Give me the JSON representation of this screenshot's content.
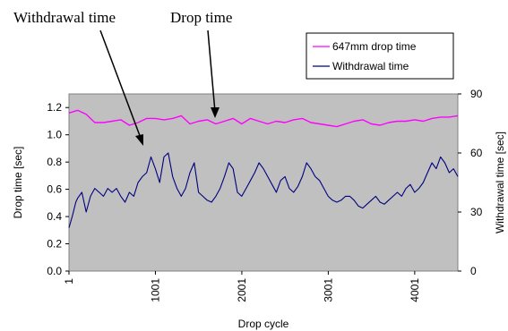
{
  "chart_data": {
    "type": "line",
    "x_label": "Drop cycle",
    "y_label_left": "Drop time [sec]",
    "y_label_right": "Withdrawal time [sec]",
    "x_range": [
      1,
      4500
    ],
    "x_ticks": [
      "1",
      "1001",
      "2001",
      "3001",
      "4001"
    ],
    "y_left_range": [
      0.0,
      1.3
    ],
    "y_left_ticks": [
      "0.0",
      "0.2",
      "0.4",
      "0.6",
      "0.8",
      "1.0",
      "1.2"
    ],
    "y_right_range": [
      0,
      90
    ],
    "y_right_ticks": [
      "0",
      "30",
      "60",
      "90"
    ],
    "plot_background": "#c0c0c0",
    "grid": false,
    "legend_position": "top-right",
    "annotations": [
      {
        "text": "Withdrawal time",
        "series": "Withdrawal time"
      },
      {
        "text": "Drop time",
        "series": "647mm drop time"
      }
    ],
    "series": [
      {
        "name": "647mm drop time",
        "axis": "left",
        "color": "#ff00ff",
        "x": [
          1,
          100,
          200,
          300,
          400,
          500,
          600,
          700,
          800,
          900,
          1000,
          1100,
          1200,
          1300,
          1400,
          1500,
          1600,
          1700,
          1800,
          1900,
          2000,
          2100,
          2200,
          2300,
          2400,
          2500,
          2600,
          2700,
          2800,
          2900,
          3000,
          3100,
          3200,
          3300,
          3400,
          3500,
          3600,
          3700,
          3800,
          3900,
          4000,
          4100,
          4200,
          4300,
          4400,
          4500
        ],
        "y": [
          1.16,
          1.18,
          1.15,
          1.09,
          1.09,
          1.1,
          1.11,
          1.07,
          1.09,
          1.12,
          1.12,
          1.11,
          1.12,
          1.14,
          1.08,
          1.1,
          1.11,
          1.08,
          1.1,
          1.12,
          1.08,
          1.12,
          1.1,
          1.08,
          1.1,
          1.09,
          1.11,
          1.12,
          1.09,
          1.08,
          1.07,
          1.06,
          1.08,
          1.1,
          1.11,
          1.08,
          1.07,
          1.09,
          1.1,
          1.1,
          1.11,
          1.1,
          1.12,
          1.13,
          1.13,
          1.14
        ]
      },
      {
        "name": "Withdrawal time",
        "axis": "right",
        "color": "#000080",
        "x": [
          1,
          40,
          80,
          100,
          150,
          200,
          250,
          300,
          350,
          400,
          450,
          500,
          550,
          600,
          650,
          700,
          750,
          800,
          850,
          900,
          950,
          1000,
          1050,
          1100,
          1150,
          1200,
          1250,
          1300,
          1350,
          1400,
          1450,
          1500,
          1550,
          1600,
          1650,
          1700,
          1750,
          1800,
          1850,
          1900,
          1950,
          2000,
          2050,
          2100,
          2150,
          2200,
          2250,
          2300,
          2350,
          2400,
          2450,
          2500,
          2550,
          2600,
          2650,
          2700,
          2750,
          2800,
          2850,
          2900,
          2950,
          3000,
          3050,
          3100,
          3150,
          3200,
          3250,
          3300,
          3350,
          3400,
          3450,
          3500,
          3550,
          3600,
          3650,
          3700,
          3750,
          3800,
          3850,
          3900,
          3950,
          4000,
          4050,
          4100,
          4150,
          4200,
          4250,
          4300,
          4350,
          4400,
          4450,
          4500
        ],
        "y": [
          22,
          28,
          35,
          37,
          40,
          30,
          38,
          42,
          40,
          38,
          42,
          40,
          42,
          38,
          35,
          40,
          38,
          45,
          48,
          50,
          58,
          52,
          45,
          58,
          60,
          48,
          42,
          38,
          42,
          50,
          55,
          40,
          38,
          36,
          35,
          38,
          42,
          48,
          55,
          52,
          40,
          38,
          42,
          46,
          50,
          55,
          52,
          48,
          44,
          40,
          46,
          48,
          42,
          40,
          43,
          48,
          55,
          52,
          48,
          46,
          42,
          38,
          36,
          35,
          36,
          38,
          38,
          36,
          33,
          32,
          34,
          36,
          38,
          35,
          34,
          36,
          38,
          40,
          38,
          42,
          44,
          40,
          42,
          45,
          50,
          55,
          52,
          58,
          55,
          50,
          52,
          48
        ]
      }
    ]
  }
}
